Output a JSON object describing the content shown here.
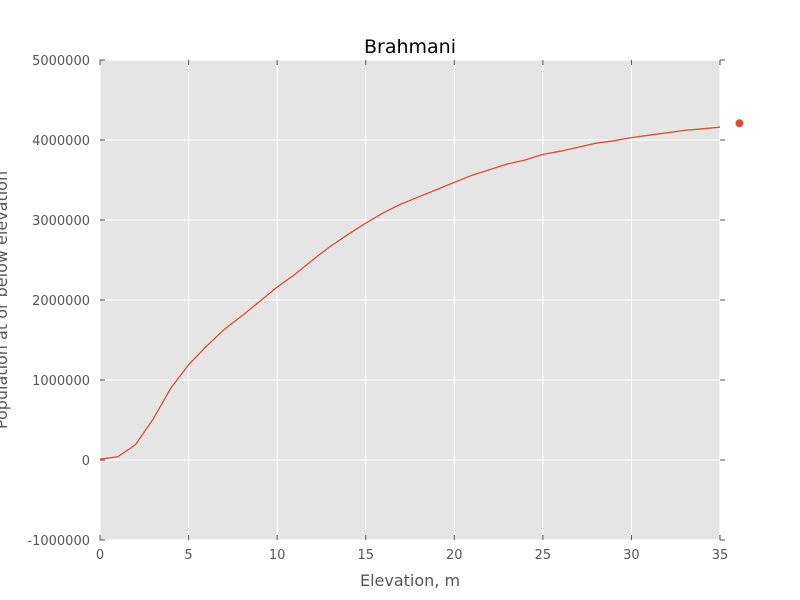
{
  "chart_data": {
    "type": "line",
    "title": "Brahmani",
    "xlabel": "Elevation, m",
    "ylabel": "Population at or below elevation",
    "xlim": [
      0,
      35
    ],
    "ylim": [
      -1000000,
      5000000
    ],
    "xticks": [
      0,
      5,
      10,
      15,
      20,
      25,
      30,
      35
    ],
    "yticks": [
      -1000000,
      0,
      1000000,
      2000000,
      3000000,
      4000000,
      5000000
    ],
    "grid": true,
    "colors": {
      "background": "#e5e5e5",
      "grid": "#ffffff",
      "line": "#e24a33"
    },
    "series": [
      {
        "x": [
          0,
          1,
          2,
          3,
          4,
          5,
          6,
          7,
          8,
          9,
          10,
          11,
          12,
          13,
          14,
          15,
          16,
          17,
          18,
          19,
          20,
          21,
          22,
          23,
          24,
          25,
          26,
          27,
          28,
          29,
          30,
          31,
          32,
          33,
          34,
          35
        ],
        "values": [
          10000,
          40000,
          190000,
          510000,
          900000,
          1190000,
          1420000,
          1630000,
          1800000,
          1980000,
          2160000,
          2320000,
          2500000,
          2670000,
          2820000,
          2960000,
          3090000,
          3200000,
          3290000,
          3380000,
          3470000,
          3560000,
          3630000,
          3700000,
          3750000,
          3820000,
          3860000,
          3910000,
          3960000,
          3990000,
          4030000,
          4060000,
          4090000,
          4120000,
          4140000,
          4160000
        ]
      }
    ],
    "extra_points": [
      {
        "x": 36.1,
        "y": 4210000
      }
    ]
  }
}
